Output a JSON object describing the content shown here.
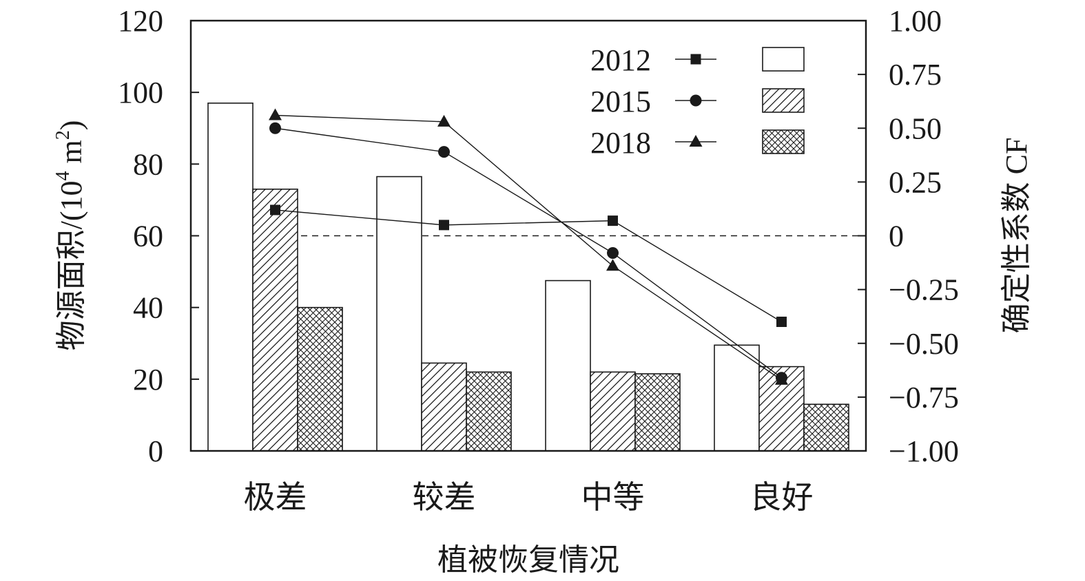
{
  "chart_data": {
    "type": "bar",
    "xlabel": "植被恢复情况",
    "categories": [
      "极差",
      "较差",
      "中等",
      "良好"
    ],
    "y_left": {
      "label_prefix": "物源面积/(10",
      "label_exp": "4",
      "label_mid": " m",
      "label_exp2": "2",
      "label_suffix": ")",
      "ylim": [
        0,
        120
      ],
      "ticks": [
        "0",
        "20",
        "40",
        "60",
        "80",
        "100",
        "120"
      ]
    },
    "y_right": {
      "label": "确定性系数 CF",
      "ylim": [
        -1.0,
        1.0
      ],
      "ticks": [
        "−1.00",
        "−0.75",
        "−0.50",
        "−0.25",
        "0",
        "0.25",
        "0.50",
        "0.75",
        "1.00"
      ]
    },
    "bar_series": [
      {
        "name": "2012",
        "pattern": "none",
        "values": [
          97,
          76.5,
          47.5,
          29.5
        ]
      },
      {
        "name": "2015",
        "pattern": "hatch",
        "values": [
          73,
          24.5,
          22,
          23.5
        ]
      },
      {
        "name": "2018",
        "pattern": "crosshatch",
        "values": [
          40,
          22,
          21.5,
          13
        ]
      }
    ],
    "line_series": [
      {
        "name": "2012",
        "marker": "square",
        "values": [
          0.12,
          0.05,
          0.07,
          -0.4
        ]
      },
      {
        "name": "2015",
        "marker": "circle",
        "values": [
          0.5,
          0.39,
          -0.08,
          -0.66
        ]
      },
      {
        "name": "2018",
        "marker": "triangle",
        "values": [
          0.56,
          0.53,
          -0.14,
          -0.67
        ]
      }
    ],
    "reference_line": {
      "axis": "right",
      "value": 0,
      "style": "dashed"
    },
    "legend": {
      "position": "top-right",
      "entries": [
        "2012",
        "2015",
        "2018"
      ]
    }
  }
}
